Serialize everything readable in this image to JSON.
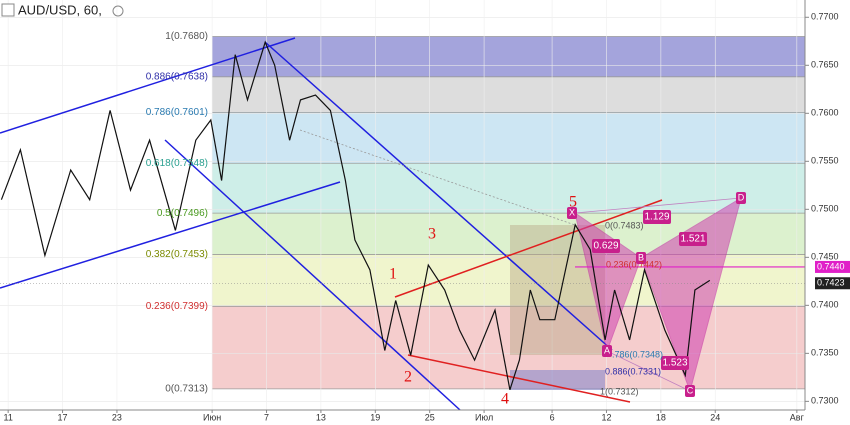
{
  "chart_data": {
    "type": "line",
    "title": "AUD/USD, 60,",
    "x": [
      -0.5,
      0.9,
      2.7,
      4.6,
      6.0,
      7.5,
      9.0,
      10.4,
      12.3,
      13.8,
      14.9,
      15.7,
      16.7,
      17.6,
      18.9,
      19.6,
      20.7,
      21.5,
      22.6,
      23.7,
      24.8,
      25.5,
      26.6,
      27.7,
      28.5,
      29.6,
      30.9,
      32.1,
      33.2,
      34.3,
      35.8,
      36.9,
      37.6,
      38.4,
      39.1,
      40.2,
      41.7,
      42.8,
      43.9,
      44.6,
      45.7,
      46.8,
      48.3,
      49.8,
      50.5,
      51.6
    ],
    "series": [
      {
        "name": "AUD/USD",
        "color": "#111111",
        "values": [
          0.751,
          0.7562,
          0.7452,
          0.7541,
          0.751,
          0.7603,
          0.752,
          0.7572,
          0.7478,
          0.7572,
          0.7593,
          0.753,
          0.7661,
          0.7614,
          0.7674,
          0.765,
          0.7572,
          0.7614,
          0.7619,
          0.7603,
          0.753,
          0.7468,
          0.7437,
          0.7353,
          0.7405,
          0.7348,
          0.7442,
          0.7416,
          0.7374,
          0.7343,
          0.7395,
          0.7312,
          0.7343,
          0.7416,
          0.7385,
          0.7385,
          0.7484,
          0.7458,
          0.7364,
          0.7416,
          0.7364,
          0.7437,
          0.7374,
          0.7327,
          0.7416,
          0.7426
        ]
      }
    ],
    "xlim": [
      -0.6,
      58.6
    ],
    "xticks": [
      {
        "value": 0,
        "label": "11"
      },
      {
        "value": 4,
        "label": "17"
      },
      {
        "value": 8,
        "label": "23"
      },
      {
        "value": 15,
        "label": "Июн"
      },
      {
        "value": 19,
        "label": "7"
      },
      {
        "value": 23,
        "label": "13"
      },
      {
        "value": 27,
        "label": "19"
      },
      {
        "value": 31,
        "label": "25"
      },
      {
        "value": 35,
        "label": "Июл"
      },
      {
        "value": 40,
        "label": "6"
      },
      {
        "value": 44,
        "label": "12"
      },
      {
        "value": 48,
        "label": "18"
      },
      {
        "value": 52,
        "label": "24"
      },
      {
        "value": 58,
        "label": "Авг"
      }
    ],
    "ylim": [
      0.7291,
      0.7718
    ],
    "yticks": [
      {
        "value": 0.73,
        "label": "0.7300"
      },
      {
        "value": 0.735,
        "label": "0.7350"
      },
      {
        "value": 0.74,
        "label": "0.7400"
      },
      {
        "value": 0.745,
        "label": "0.7450"
      },
      {
        "value": 0.75,
        "label": "0.7500"
      },
      {
        "value": 0.755,
        "label": "0.7550"
      },
      {
        "value": 0.76,
        "label": "0.7600"
      },
      {
        "value": 0.765,
        "label": "0.7650"
      },
      {
        "value": 0.77,
        "label": "0.7700"
      }
    ],
    "fib_levels": [
      {
        "value": 0.768,
        "label": "1(0.7680)",
        "color": "#9a9ad8"
      },
      {
        "value": 0.7638,
        "label": "0.886(0.7638)",
        "color": "#d9d9d9"
      },
      {
        "value": 0.7601,
        "label": "0.786(0.7601)",
        "color": "#c8e3f2"
      },
      {
        "value": 0.7548,
        "label": "0.618(0.7548)",
        "color": "#c9ece6"
      },
      {
        "value": 0.7496,
        "label": "0.5(0.7496)",
        "color": "#d8f0c9"
      },
      {
        "value": 0.7453,
        "label": "0.382(0.7453)",
        "color": "#eef4c8"
      },
      {
        "value": 0.7399,
        "label": "0.236(0.7399)",
        "color": "#f4c8c8"
      },
      {
        "value": 0.7313,
        "label": "0(0.7313)",
        "color": "#f4c8c8"
      }
    ],
    "price_labels": [
      {
        "value": 0.744,
        "label": "0.7440",
        "color": "#e020c8"
      },
      {
        "value": 0.7423,
        "label": "0.7423",
        "color": "#222222"
      }
    ],
    "waves": [
      "1",
      "2",
      "3",
      "4",
      "5"
    ],
    "pattern_points": [
      "X",
      "A",
      "B",
      "C",
      "D"
    ],
    "ratios": [
      "1.129",
      "0.629",
      "1.521",
      "1.523"
    ],
    "inner_fib_labels": [
      "0(0.7483)",
      "0.236(0.7442)",
      ".786(0.7348)",
      "0.886(0.7331)",
      "1(0.7312)"
    ]
  }
}
